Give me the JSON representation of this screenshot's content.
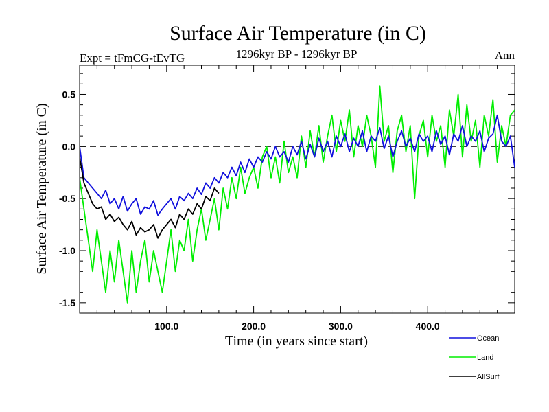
{
  "chart_data": {
    "type": "line",
    "title": "Surface Air Temperature (in C)",
    "subtitle_left": "Expt = tFmCG-tEvTG",
    "subtitle_center": "1296kyr BP - 1296kyr BP",
    "subtitle_right": "Ann",
    "xlabel": "Time (in years since start)",
    "ylabel": "Surface Air Temperature (in C)",
    "xlim": [
      0,
      500
    ],
    "ylim": [
      -1.6,
      0.78
    ],
    "x_ticks": [
      100,
      200,
      300,
      400
    ],
    "x_tick_labels": [
      "100.0",
      "200.0",
      "300.0",
      "400.0"
    ],
    "y_ticks": [
      0.5,
      0.0,
      -0.5,
      -1.0,
      -1.5
    ],
    "y_tick_labels": [
      "0.5",
      "0.0",
      "-0.5",
      "-1.0",
      "-1.5"
    ],
    "reference_line": 0.0,
    "colors": {
      "Ocean": "#1010dd",
      "Land": "#00ee00",
      "AllSurf": "#000000",
      "axis": "#000000"
    },
    "series": [
      {
        "name": "Land",
        "x": [
          0,
          5,
          10,
          15,
          20,
          25,
          30,
          35,
          40,
          45,
          50,
          55,
          60,
          65,
          70,
          75,
          80,
          85,
          90,
          95,
          100,
          105,
          110,
          115,
          120,
          125,
          130,
          135,
          140,
          145,
          150,
          155,
          160,
          165,
          170,
          175,
          180,
          185,
          190,
          195,
          200,
          205,
          210,
          215,
          220,
          225,
          230,
          235,
          240,
          245,
          250,
          255,
          260,
          265,
          270,
          275,
          280,
          285,
          290,
          295,
          300,
          305,
          310,
          315,
          320,
          325,
          330,
          335,
          340,
          345,
          350,
          355,
          360,
          365,
          370,
          375,
          380,
          385,
          390,
          395,
          400,
          405,
          410,
          415,
          420,
          425,
          430,
          435,
          440,
          445,
          450,
          455,
          460,
          465,
          470,
          475,
          480,
          485,
          490,
          495,
          500
        ],
        "values": [
          -0.3,
          -0.6,
          -0.9,
          -1.2,
          -0.8,
          -1.1,
          -1.4,
          -1.0,
          -1.3,
          -0.9,
          -1.2,
          -1.5,
          -1.0,
          -1.4,
          -1.1,
          -0.9,
          -1.3,
          -1.0,
          -1.2,
          -1.4,
          -1.1,
          -0.8,
          -1.2,
          -0.9,
          -1.0,
          -0.7,
          -1.1,
          -0.8,
          -0.6,
          -0.9,
          -0.7,
          -0.5,
          -0.8,
          -0.4,
          -0.6,
          -0.3,
          -0.5,
          -0.2,
          -0.45,
          -0.3,
          -0.2,
          -0.4,
          -0.1,
          0.0,
          -0.3,
          -0.1,
          -0.35,
          0.05,
          -0.25,
          -0.1,
          -0.3,
          0.1,
          -0.2,
          0.15,
          -0.1,
          0.2,
          -0.15,
          0.1,
          0.3,
          -0.05,
          0.25,
          0.05,
          0.35,
          -0.1,
          0.2,
          0.0,
          0.3,
          0.1,
          -0.2,
          0.58,
          0.05,
          0.2,
          -0.25,
          0.15,
          0.3,
          -0.05,
          0.2,
          -0.5,
          0.1,
          0.25,
          -0.1,
          0.3,
          0.05,
          0.2,
          -0.2,
          0.35,
          0.1,
          0.5,
          -0.1,
          0.4,
          0.05,
          0.25,
          -0.2,
          0.3,
          0.1,
          0.45,
          -0.15,
          0.2,
          0.0,
          0.3,
          0.35
        ]
      },
      {
        "name": "Ocean",
        "x": [
          0,
          5,
          10,
          15,
          20,
          25,
          30,
          35,
          40,
          45,
          50,
          55,
          60,
          65,
          70,
          75,
          80,
          85,
          90,
          95,
          100,
          105,
          110,
          115,
          120,
          125,
          130,
          135,
          140,
          145,
          150,
          155,
          160,
          165,
          170,
          175,
          180,
          185,
          190,
          195,
          200,
          205,
          210,
          215,
          220,
          225,
          230,
          235,
          240,
          245,
          250,
          255,
          260,
          265,
          270,
          275,
          280,
          285,
          290,
          295,
          300,
          305,
          310,
          315,
          320,
          325,
          330,
          335,
          340,
          345,
          350,
          355,
          360,
          365,
          370,
          375,
          380,
          385,
          390,
          395,
          400,
          405,
          410,
          415,
          420,
          425,
          430,
          435,
          440,
          445,
          450,
          455,
          460,
          465,
          470,
          475,
          480,
          485,
          490,
          495,
          500
        ],
        "values": [
          0.0,
          -0.3,
          -0.35,
          -0.4,
          -0.45,
          -0.5,
          -0.42,
          -0.55,
          -0.5,
          -0.6,
          -0.48,
          -0.62,
          -0.55,
          -0.5,
          -0.65,
          -0.58,
          -0.6,
          -0.52,
          -0.66,
          -0.6,
          -0.55,
          -0.5,
          -0.6,
          -0.48,
          -0.52,
          -0.45,
          -0.5,
          -0.4,
          -0.46,
          -0.35,
          -0.4,
          -0.3,
          -0.35,
          -0.25,
          -0.3,
          -0.2,
          -0.28,
          -0.15,
          -0.25,
          -0.12,
          -0.2,
          -0.1,
          -0.15,
          -0.05,
          -0.12,
          0.0,
          -0.1,
          -0.05,
          -0.15,
          0.0,
          -0.08,
          0.05,
          -0.12,
          0.02,
          -0.1,
          0.08,
          -0.05,
          0.05,
          -0.1,
          0.1,
          0.0,
          0.12,
          -0.05,
          0.08,
          0.0,
          0.15,
          -0.05,
          0.1,
          0.05,
          0.18,
          -0.02,
          0.1,
          -0.1,
          0.05,
          0.15,
          0.0,
          0.08,
          -0.05,
          0.12,
          0.05,
          0.1,
          -0.05,
          0.15,
          0.02,
          0.1,
          -0.08,
          0.12,
          0.05,
          0.2,
          0.0,
          0.1,
          0.05,
          0.15,
          -0.05,
          0.08,
          0.12,
          0.3,
          0.05,
          0.0,
          0.1,
          -0.2
        ]
      },
      {
        "name": "AllSurf",
        "x": [
          0,
          5,
          10,
          15,
          20,
          25,
          30,
          35,
          40,
          45,
          50,
          55,
          60,
          65,
          70,
          75,
          80,
          85,
          90,
          95,
          100,
          105,
          110,
          115,
          120,
          125,
          130,
          135,
          140,
          145,
          150,
          155,
          160,
          165,
          170,
          175,
          180,
          185,
          190,
          195,
          200,
          205,
          210,
          215,
          220,
          225,
          230,
          235,
          240,
          245,
          250,
          255,
          260,
          265,
          270,
          275,
          280,
          285,
          290,
          295,
          300,
          305,
          310,
          315,
          320,
          325,
          330,
          335,
          340,
          345,
          350,
          355,
          360,
          365,
          370,
          375,
          380,
          385,
          390,
          395,
          400,
          405,
          410,
          415,
          420,
          425,
          430,
          435,
          440,
          445,
          450,
          455,
          460,
          465,
          470,
          475,
          480,
          485,
          490,
          495,
          500
        ],
        "values": [
          -0.1,
          -0.35,
          -0.45,
          -0.55,
          -0.6,
          -0.58,
          -0.7,
          -0.65,
          -0.72,
          -0.68,
          -0.75,
          -0.8,
          -0.72,
          -0.85,
          -0.78,
          -0.82,
          -0.8,
          -0.75,
          -0.88,
          -0.8,
          -0.75,
          -0.7,
          -0.78,
          -0.65,
          -0.7,
          -0.6,
          -0.65,
          -0.55,
          -0.6,
          -0.48,
          -0.52,
          -0.4,
          -0.45,
          -0.35,
          -0.4,
          -0.3,
          -0.35,
          -0.22,
          -0.3,
          -0.18,
          -0.25,
          -0.15,
          -0.2,
          -0.08,
          -0.15,
          -0.02,
          -0.12,
          -0.05,
          -0.18,
          -0.02,
          -0.1,
          0.05,
          -0.14,
          0.0,
          -0.12,
          0.07,
          -0.06,
          0.06,
          -0.08,
          0.12,
          0.02,
          0.15,
          -0.04,
          0.1,
          0.0,
          0.16,
          -0.04,
          0.12,
          0.04,
          0.2,
          0.0,
          0.12,
          -0.1,
          0.07,
          0.16,
          0.0,
          0.1,
          -0.08,
          0.14,
          0.06,
          0.12,
          -0.04,
          0.16,
          0.04,
          0.12,
          -0.06,
          0.14,
          0.08,
          0.22,
          0.02,
          0.12,
          0.06,
          0.18,
          -0.04,
          0.1,
          0.14,
          0.3,
          0.06,
          0.0,
          0.12,
          -0.18
        ]
      }
    ],
    "legend": [
      {
        "label": "Ocean",
        "color": "#1010dd"
      },
      {
        "label": "Land",
        "color": "#00ee00"
      },
      {
        "label": "AllSurf",
        "color": "#000000"
      }
    ]
  }
}
